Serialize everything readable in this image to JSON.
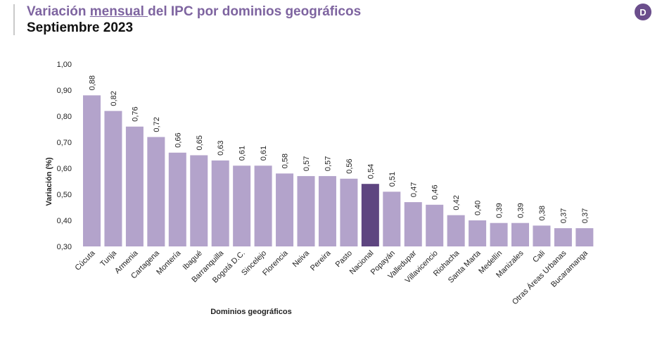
{
  "header": {
    "title_part1": "Variación ",
    "title_underlined": "mensual ",
    "title_part2": "del IPC por dominios geográficos",
    "subtitle": "Septiembre 2023",
    "logo_letter": "D"
  },
  "colors": {
    "bar": "#b3a3cb",
    "highlight": "#5e4580",
    "title": "#7e64a0"
  },
  "chart_data": {
    "type": "bar",
    "title": "Variación mensual del IPC por dominios geográficos",
    "subtitle": "Septiembre 2023",
    "xlabel": "Dominios geográficos",
    "ylabel": "Variación (%)",
    "ylim": [
      0.3,
      1.0
    ],
    "yticks": [
      "0,30",
      "0,40",
      "0,50",
      "0,60",
      "0,70",
      "0,80",
      "0,90",
      "1,00"
    ],
    "grid": false,
    "legend": "none",
    "highlight_category": "Nacional",
    "categories": [
      "Cúcuta",
      "Tunja",
      "Armenia",
      "Cartagena",
      "Montería",
      "Ibagué",
      "Barranquilla",
      "Bogotá D.C.",
      "Sincelejo",
      "Florencia",
      "Neiva",
      "Pereira",
      "Pasto",
      "Nacional",
      "Popayán",
      "Valledupar",
      "Villavicencio",
      "Riohacha",
      "Santa Marta",
      "Medellín",
      "Manizales",
      "Cali",
      "Otras Áreas Urbanas",
      "Bucaramanga"
    ],
    "values": [
      0.88,
      0.82,
      0.76,
      0.72,
      0.66,
      0.65,
      0.63,
      0.61,
      0.61,
      0.58,
      0.57,
      0.57,
      0.56,
      0.54,
      0.51,
      0.47,
      0.46,
      0.42,
      0.4,
      0.39,
      0.39,
      0.38,
      0.37,
      0.37
    ],
    "value_labels": [
      "0,88",
      "0,82",
      "0,76",
      "0,72",
      "0,66",
      "0,65",
      "0,63",
      "0,61",
      "0,61",
      "0,58",
      "0,57",
      "0,57",
      "0,56",
      "0,54",
      "0,51",
      "0,47",
      "0,46",
      "0,42",
      "0,40",
      "0,39",
      "0,39",
      "0,38",
      "0,37",
      "0,37"
    ]
  }
}
